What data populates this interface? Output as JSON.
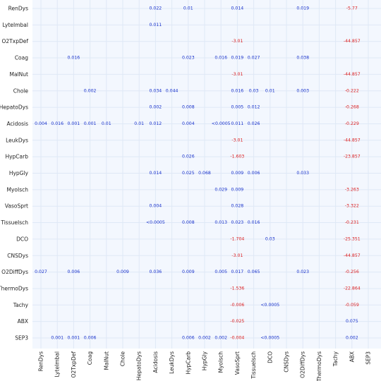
{
  "chart_data": {
    "type": "table",
    "title": "",
    "xlabel": "",
    "ylabel": "",
    "colors": {
      "positive": "#1a33cc",
      "negative": "#dd1f1f",
      "background": "#f3f7fe",
      "grid": "#dfe8f6"
    },
    "rows": [
      "RenDys",
      "LyteImbal",
      "O2TxpDef",
      "Coag",
      "MalNut",
      "Chole",
      "HepatoDys",
      "Acidosis",
      "LeukDys",
      "HypCarb",
      "HypGly",
      "MyoIsch",
      "VasoSprt",
      "TissueIsch",
      "DCO",
      "CNSDys",
      "O2DiffDys",
      "ThermoDys",
      "Tachy",
      "ABX",
      "SEP3"
    ],
    "columns": [
      "RenDys",
      "LyteImbal",
      "O2TxpDef",
      "Coag",
      "MalNut",
      "Chole",
      "HepatoDys",
      "Acidosis",
      "LeukDys",
      "HypCarb",
      "HypGly",
      "MyoIsch",
      "VasoSprt",
      "TissueIsch",
      "DCO",
      "CNSDys",
      "O2DiffDys",
      "ThermoDys",
      "Tachy",
      "ABX",
      "SEP3"
    ],
    "cells": [
      {
        "row": "RenDys",
        "col": "Acidosis",
        "value": "0.022"
      },
      {
        "row": "RenDys",
        "col": "HypCarb",
        "value": "0.01"
      },
      {
        "row": "RenDys",
        "col": "VasoSprt",
        "value": "0.014"
      },
      {
        "row": "RenDys",
        "col": "O2DiffDys",
        "value": "0.019"
      },
      {
        "row": "RenDys",
        "col": "ABX",
        "value": "-5.77"
      },
      {
        "row": "LyteImbal",
        "col": "Acidosis",
        "value": "0.011"
      },
      {
        "row": "O2TxpDef",
        "col": "VasoSprt",
        "value": "-3.01"
      },
      {
        "row": "O2TxpDef",
        "col": "ABX",
        "value": "-44.857"
      },
      {
        "row": "Coag",
        "col": "O2TxpDef",
        "value": "0.016"
      },
      {
        "row": "Coag",
        "col": "HypCarb",
        "value": "0.023"
      },
      {
        "row": "Coag",
        "col": "MyoIsch",
        "value": "0.016"
      },
      {
        "row": "Coag",
        "col": "VasoSprt",
        "value": "0.019"
      },
      {
        "row": "Coag",
        "col": "TissueIsch",
        "value": "0.027"
      },
      {
        "row": "Coag",
        "col": "O2DiffDys",
        "value": "0.038"
      },
      {
        "row": "MalNut",
        "col": "VasoSprt",
        "value": "-3.01"
      },
      {
        "row": "MalNut",
        "col": "ABX",
        "value": "-44.857"
      },
      {
        "row": "Chole",
        "col": "Coag",
        "value": "0.002"
      },
      {
        "row": "Chole",
        "col": "Acidosis",
        "value": "0.034"
      },
      {
        "row": "Chole",
        "col": "LeukDys",
        "value": "0.044"
      },
      {
        "row": "Chole",
        "col": "VasoSprt",
        "value": "0.016"
      },
      {
        "row": "Chole",
        "col": "TissueIsch",
        "value": "0.03"
      },
      {
        "row": "Chole",
        "col": "DCO",
        "value": "0.01"
      },
      {
        "row": "Chole",
        "col": "O2DiffDys",
        "value": "0.003"
      },
      {
        "row": "Chole",
        "col": "ABX",
        "value": "-0.222"
      },
      {
        "row": "HepatoDys",
        "col": "Acidosis",
        "value": "0.002"
      },
      {
        "row": "HepatoDys",
        "col": "HypCarb",
        "value": "0.008"
      },
      {
        "row": "HepatoDys",
        "col": "VasoSprt",
        "value": "0.005"
      },
      {
        "row": "HepatoDys",
        "col": "TissueIsch",
        "value": "0.012"
      },
      {
        "row": "HepatoDys",
        "col": "ABX",
        "value": "-0.268"
      },
      {
        "row": "Acidosis",
        "col": "RenDys",
        "value": "0.004"
      },
      {
        "row": "Acidosis",
        "col": "LyteImbal",
        "value": "0.016"
      },
      {
        "row": "Acidosis",
        "col": "O2TxpDef",
        "value": "0.001"
      },
      {
        "row": "Acidosis",
        "col": "Coag",
        "value": "0.001"
      },
      {
        "row": "Acidosis",
        "col": "MalNut",
        "value": "0.01"
      },
      {
        "row": "Acidosis",
        "col": "HepatoDys",
        "value": "0.01"
      },
      {
        "row": "Acidosis",
        "col": "Acidosis",
        "value": "0.012"
      },
      {
        "row": "Acidosis",
        "col": "HypCarb",
        "value": "0.004"
      },
      {
        "row": "Acidosis",
        "col": "MyoIsch",
        "value": "<0.0005"
      },
      {
        "row": "Acidosis",
        "col": "VasoSprt",
        "value": "0.011"
      },
      {
        "row": "Acidosis",
        "col": "TissueIsch",
        "value": "0.026"
      },
      {
        "row": "Acidosis",
        "col": "ABX",
        "value": "-0.229"
      },
      {
        "row": "LeukDys",
        "col": "VasoSprt",
        "value": "-3.01"
      },
      {
        "row": "LeukDys",
        "col": "ABX",
        "value": "-44.857"
      },
      {
        "row": "HypCarb",
        "col": "HypCarb",
        "value": "0.026"
      },
      {
        "row": "HypCarb",
        "col": "VasoSprt",
        "value": "-1.603"
      },
      {
        "row": "HypCarb",
        "col": "ABX",
        "value": "-23.857"
      },
      {
        "row": "HypGly",
        "col": "Acidosis",
        "value": "0.014"
      },
      {
        "row": "HypGly",
        "col": "HypCarb",
        "value": "0.025"
      },
      {
        "row": "HypGly",
        "col": "HypGly",
        "value": "0.068"
      },
      {
        "row": "HypGly",
        "col": "VasoSprt",
        "value": "0.009"
      },
      {
        "row": "HypGly",
        "col": "TissueIsch",
        "value": "0.006"
      },
      {
        "row": "HypGly",
        "col": "O2DiffDys",
        "value": "0.033"
      },
      {
        "row": "MyoIsch",
        "col": "MyoIsch",
        "value": "0.029"
      },
      {
        "row": "MyoIsch",
        "col": "VasoSprt",
        "value": "0.009"
      },
      {
        "row": "MyoIsch",
        "col": "ABX",
        "value": "-3.263"
      },
      {
        "row": "VasoSprt",
        "col": "Acidosis",
        "value": "0.004"
      },
      {
        "row": "VasoSprt",
        "col": "VasoSprt",
        "value": "0.028"
      },
      {
        "row": "VasoSprt",
        "col": "ABX",
        "value": "-3.322"
      },
      {
        "row": "TissueIsch",
        "col": "Acidosis",
        "value": "<0.0005"
      },
      {
        "row": "TissueIsch",
        "col": "HypCarb",
        "value": "0.008"
      },
      {
        "row": "TissueIsch",
        "col": "MyoIsch",
        "value": "0.013"
      },
      {
        "row": "TissueIsch",
        "col": "VasoSprt",
        "value": "0.023"
      },
      {
        "row": "TissueIsch",
        "col": "TissueIsch",
        "value": "0.016"
      },
      {
        "row": "TissueIsch",
        "col": "ABX",
        "value": "-0.231"
      },
      {
        "row": "DCO",
        "col": "VasoSprt",
        "value": "-1.704"
      },
      {
        "row": "DCO",
        "col": "DCO",
        "value": "0.03"
      },
      {
        "row": "DCO",
        "col": "ABX",
        "value": "-25.351"
      },
      {
        "row": "CNSDys",
        "col": "VasoSprt",
        "value": "-3.01"
      },
      {
        "row": "CNSDys",
        "col": "ABX",
        "value": "-44.857"
      },
      {
        "row": "O2DiffDys",
        "col": "RenDys",
        "value": "0.027"
      },
      {
        "row": "O2DiffDys",
        "col": "O2TxpDef",
        "value": "0.006"
      },
      {
        "row": "O2DiffDys",
        "col": "Chole",
        "value": "0.009"
      },
      {
        "row": "O2DiffDys",
        "col": "Acidosis",
        "value": "0.036"
      },
      {
        "row": "O2DiffDys",
        "col": "HypCarb",
        "value": "0.009"
      },
      {
        "row": "O2DiffDys",
        "col": "MyoIsch",
        "value": "0.005"
      },
      {
        "row": "O2DiffDys",
        "col": "VasoSprt",
        "value": "0.017"
      },
      {
        "row": "O2DiffDys",
        "col": "TissueIsch",
        "value": "0.065"
      },
      {
        "row": "O2DiffDys",
        "col": "O2DiffDys",
        "value": "0.023"
      },
      {
        "row": "O2DiffDys",
        "col": "ABX",
        "value": "-0.256"
      },
      {
        "row": "ThermoDys",
        "col": "VasoSprt",
        "value": "-1.536"
      },
      {
        "row": "ThermoDys",
        "col": "ABX",
        "value": "-22.864"
      },
      {
        "row": "Tachy",
        "col": "VasoSprt",
        "value": "-0.006"
      },
      {
        "row": "Tachy",
        "col": "DCO",
        "value": "<0.0005"
      },
      {
        "row": "Tachy",
        "col": "ABX",
        "value": "-0.059"
      },
      {
        "row": "ABX",
        "col": "VasoSprt",
        "value": "-0.025"
      },
      {
        "row": "ABX",
        "col": "ABX",
        "value": "0.075"
      },
      {
        "row": "SEP3",
        "col": "LyteImbal",
        "value": "0.001"
      },
      {
        "row": "SEP3",
        "col": "O2TxpDef",
        "value": "0.001"
      },
      {
        "row": "SEP3",
        "col": "Coag",
        "value": "0.006"
      },
      {
        "row": "SEP3",
        "col": "HypCarb",
        "value": "0.006"
      },
      {
        "row": "SEP3",
        "col": "HypGly",
        "value": "0.002"
      },
      {
        "row": "SEP3",
        "col": "MyoIsch",
        "value": "0.002"
      },
      {
        "row": "SEP3",
        "col": "VasoSprt",
        "value": "-0.004"
      },
      {
        "row": "SEP3",
        "col": "DCO",
        "value": "<0.0005"
      },
      {
        "row": "SEP3",
        "col": "ABX",
        "value": "0.002"
      }
    ]
  }
}
